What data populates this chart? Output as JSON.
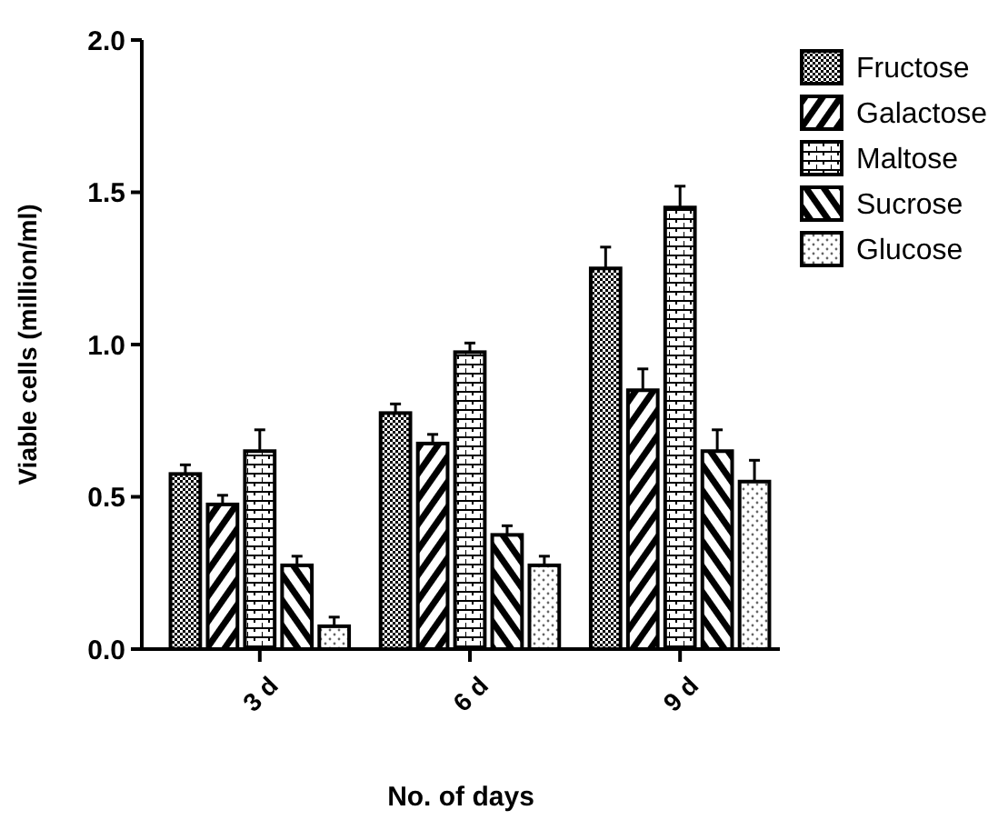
{
  "chart_data": {
    "type": "bar",
    "xlabel": "No. of days",
    "ylabel": "Viable cells (million/ml)",
    "categories": [
      "3 d",
      "6 d",
      "9 d"
    ],
    "series": [
      {
        "name": "Fructose",
        "color": "#000000",
        "values": [
          0.575,
          0.775,
          1.25
        ],
        "errors": [
          0.03,
          0.03,
          0.07
        ]
      },
      {
        "name": "Galactose",
        "color": "#000000",
        "values": [
          0.475,
          0.675,
          0.85
        ],
        "errors": [
          0.03,
          0.03,
          0.07
        ]
      },
      {
        "name": "Maltose",
        "color": "#000000",
        "values": [
          0.65,
          0.975,
          1.45
        ],
        "errors": [
          0.07,
          0.03,
          0.07
        ]
      },
      {
        "name": "Sucrose",
        "color": "#000000",
        "values": [
          0.275,
          0.375,
          0.65
        ],
        "errors": [
          0.03,
          0.03,
          0.07
        ]
      },
      {
        "name": "Glucose",
        "color": "#000000",
        "values": [
          0.075,
          0.275,
          0.55
        ],
        "errors": [
          0.03,
          0.03,
          0.07
        ]
      }
    ],
    "ylim": [
      0,
      2
    ],
    "yticks": [
      {
        "value": 0,
        "label": "0.0"
      },
      {
        "value": 0.5,
        "label": "0.5"
      },
      {
        "value": 1,
        "label": "1.0"
      },
      {
        "value": 1.5,
        "label": "1.5"
      },
      {
        "value": 2,
        "label": "2.0"
      }
    ],
    "grid": false,
    "legend": "top right"
  }
}
